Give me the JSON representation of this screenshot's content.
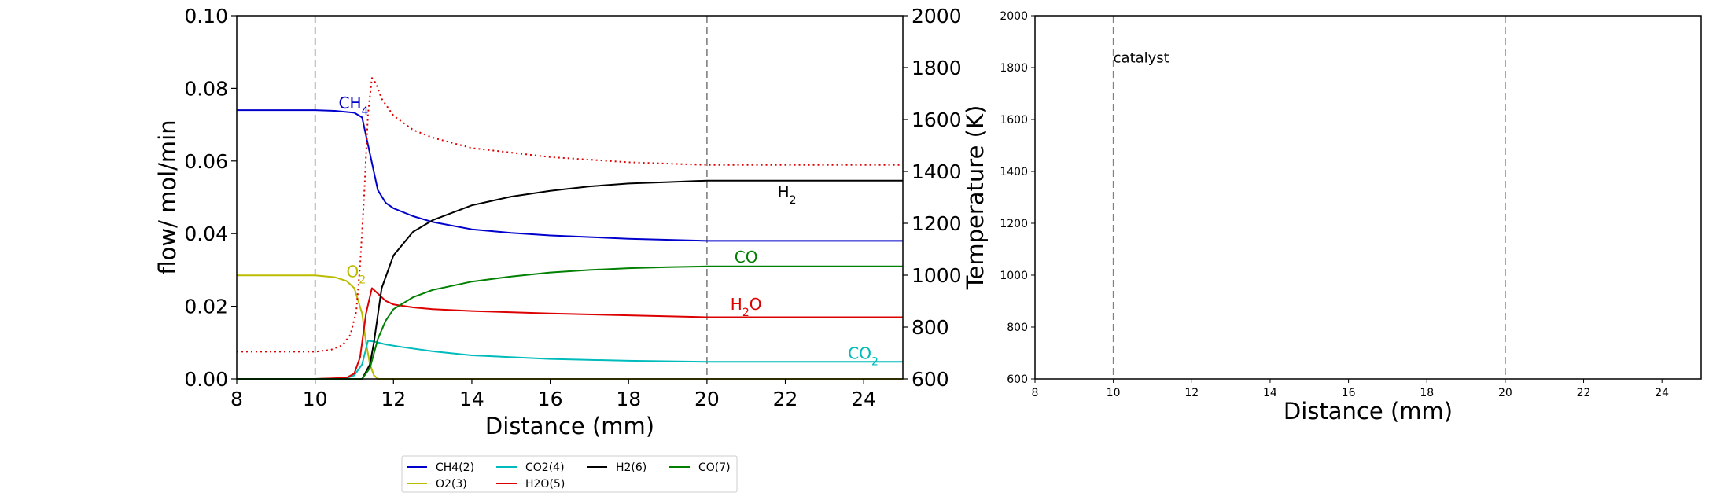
{
  "chart_data": [
    {
      "type": "line",
      "xlabel": "Distance (mm)",
      "ylabel": "flow/ mol/min",
      "ylabel_right": "Temperature (K)",
      "xlim": [
        8,
        25
      ],
      "ylim": [
        0,
        0.1
      ],
      "ylim_right": [
        600,
        2000
      ],
      "x_ticks": [
        "8",
        "10",
        "12",
        "14",
        "16",
        "18",
        "20",
        "22",
        "24"
      ],
      "y_ticks": [
        "0.00",
        "0.02",
        "0.04",
        "0.06",
        "0.08",
        "0.10"
      ],
      "y_ticks_right": [
        "600",
        "800",
        "1000",
        "1200",
        "1400",
        "1600",
        "1800",
        "2000"
      ],
      "catalyst_lines_x": [
        10,
        20
      ],
      "grid": false,
      "series": [
        {
          "name": "CH4(2)",
          "color": "#0000cc",
          "x": [
            8,
            10,
            10.5,
            11,
            11.2,
            11.4,
            11.6,
            11.8,
            12,
            12.5,
            13,
            14,
            15,
            16,
            18,
            20,
            22,
            25
          ],
          "y": [
            0.074,
            0.074,
            0.0738,
            0.0733,
            0.072,
            0.062,
            0.052,
            0.0485,
            0.047,
            0.0448,
            0.0432,
            0.0412,
            0.0402,
            0.0395,
            0.0386,
            0.038,
            0.038,
            0.038
          ]
        },
        {
          "name": "O2(3)",
          "color": "#bbbb00",
          "x": [
            8,
            10,
            10.5,
            10.8,
            11,
            11.2,
            11.3,
            11.4,
            11.5,
            11.6,
            12,
            25
          ],
          "y": [
            0.0285,
            0.0285,
            0.028,
            0.027,
            0.025,
            0.018,
            0.01,
            0.004,
            0.001,
            0,
            0,
            0
          ]
        },
        {
          "name": "CO2(4)",
          "color": "#00bbbb",
          "x": [
            8,
            10,
            10.8,
            11,
            11.2,
            11.35,
            11.5,
            11.8,
            12.2,
            13,
            14,
            16,
            18,
            20,
            25
          ],
          "y": [
            0,
            0,
            0.0002,
            0.001,
            0.004,
            0.0105,
            0.0103,
            0.0095,
            0.0088,
            0.0076,
            0.0065,
            0.0055,
            0.005,
            0.0047,
            0.0047
          ]
        },
        {
          "name": "H2O(5)",
          "color": "#dd0000",
          "x": [
            8,
            10,
            10.8,
            11,
            11.15,
            11.3,
            11.45,
            11.6,
            11.8,
            12,
            12.5,
            13,
            14,
            16,
            18,
            20,
            25
          ],
          "y": [
            0,
            0,
            0.0003,
            0.0015,
            0.006,
            0.018,
            0.025,
            0.0235,
            0.0215,
            0.0205,
            0.0197,
            0.0192,
            0.0187,
            0.018,
            0.0175,
            0.017,
            0.017
          ]
        },
        {
          "name": "H2(6)",
          "color": "#000000",
          "x": [
            8,
            11.2,
            11.4,
            11.5,
            11.7,
            12,
            12.5,
            13,
            14,
            15,
            16,
            17,
            18,
            19,
            20,
            25
          ],
          "y": [
            0,
            0,
            0.004,
            0.01,
            0.025,
            0.034,
            0.0405,
            0.0437,
            0.0478,
            0.0502,
            0.0518,
            0.053,
            0.0538,
            0.0542,
            0.0546,
            0.0546
          ]
        },
        {
          "name": "CO(7)",
          "color": "#008000",
          "x": [
            8,
            11.2,
            11.4,
            11.6,
            11.8,
            12,
            12.5,
            13,
            14,
            15,
            16,
            17,
            18,
            19,
            20,
            25
          ],
          "y": [
            0,
            0,
            0.003,
            0.011,
            0.016,
            0.0192,
            0.0225,
            0.0245,
            0.0268,
            0.0282,
            0.0293,
            0.03,
            0.0305,
            0.0308,
            0.031,
            0.031
          ]
        },
        {
          "name": "",
          "axis": "right",
          "color": "#dd0000",
          "dash": "dotted",
          "x": [
            8,
            10,
            10.4,
            10.7,
            10.9,
            11.05,
            11.15,
            11.25,
            11.35,
            11.45,
            11.55,
            11.7,
            12,
            12.5,
            13,
            14,
            16,
            18,
            20,
            25
          ],
          "y": [
            705,
            705,
            712,
            730,
            770,
            860,
            1040,
            1300,
            1620,
            1760,
            1740,
            1680,
            1615,
            1560,
            1530,
            1490,
            1455,
            1435,
            1425,
            1425
          ]
        }
      ],
      "annotations": [
        {
          "base": "CH",
          "sub": "4",
          "x": 10.6,
          "y": 0.0745,
          "color": "#0000cc"
        },
        {
          "base": "O",
          "sub": "2",
          "x": 10.8,
          "y": 0.028,
          "color": "#bbbb00"
        },
        {
          "base": "H",
          "sub": "2",
          "x": 21.8,
          "y": 0.05,
          "color": "#000000"
        },
        {
          "base": "CO",
          "sub": "",
          "x": 20.7,
          "y": 0.032,
          "color": "#008000"
        },
        {
          "base": "H",
          "sub": "2",
          "tail": "O",
          "x": 20.6,
          "y": 0.019,
          "color": "#dd0000"
        },
        {
          "base": "CO",
          "sub": "2",
          "x": 23.6,
          "y": 0.0055,
          "color": "#00bbbb"
        }
      ],
      "legend": {
        "placement": "bottom-center",
        "entries": [
          {
            "label": "CH4(2)",
            "color": "#0000cc"
          },
          {
            "label": "CO2(4)",
            "color": "#00bbbb"
          },
          {
            "label": "H2(6)",
            "color": "#000000"
          },
          {
            "label": "CO(7)",
            "color": "#008000"
          },
          {
            "label": "O2(3)",
            "color": "#bbbb00"
          },
          {
            "label": "H2O(5)",
            "color": "#dd0000"
          }
        ]
      }
    },
    {
      "type": "line",
      "xlabel": "Distance (mm)",
      "ylabel": "",
      "xlim": [
        8,
        25
      ],
      "ylim": [
        600,
        2000
      ],
      "x_ticks": [
        "8",
        "10",
        "12",
        "14",
        "16",
        "18",
        "20",
        "22",
        "24"
      ],
      "y_ticks": [
        "600",
        "800",
        "1000",
        "1200",
        "1400",
        "1600",
        "1800",
        "2000"
      ],
      "catalyst_lines_x": [
        10,
        20
      ],
      "grid": false,
      "series": [],
      "annotations": [
        {
          "text": "catalyst",
          "x": 10,
          "y": 1820
        }
      ]
    }
  ]
}
